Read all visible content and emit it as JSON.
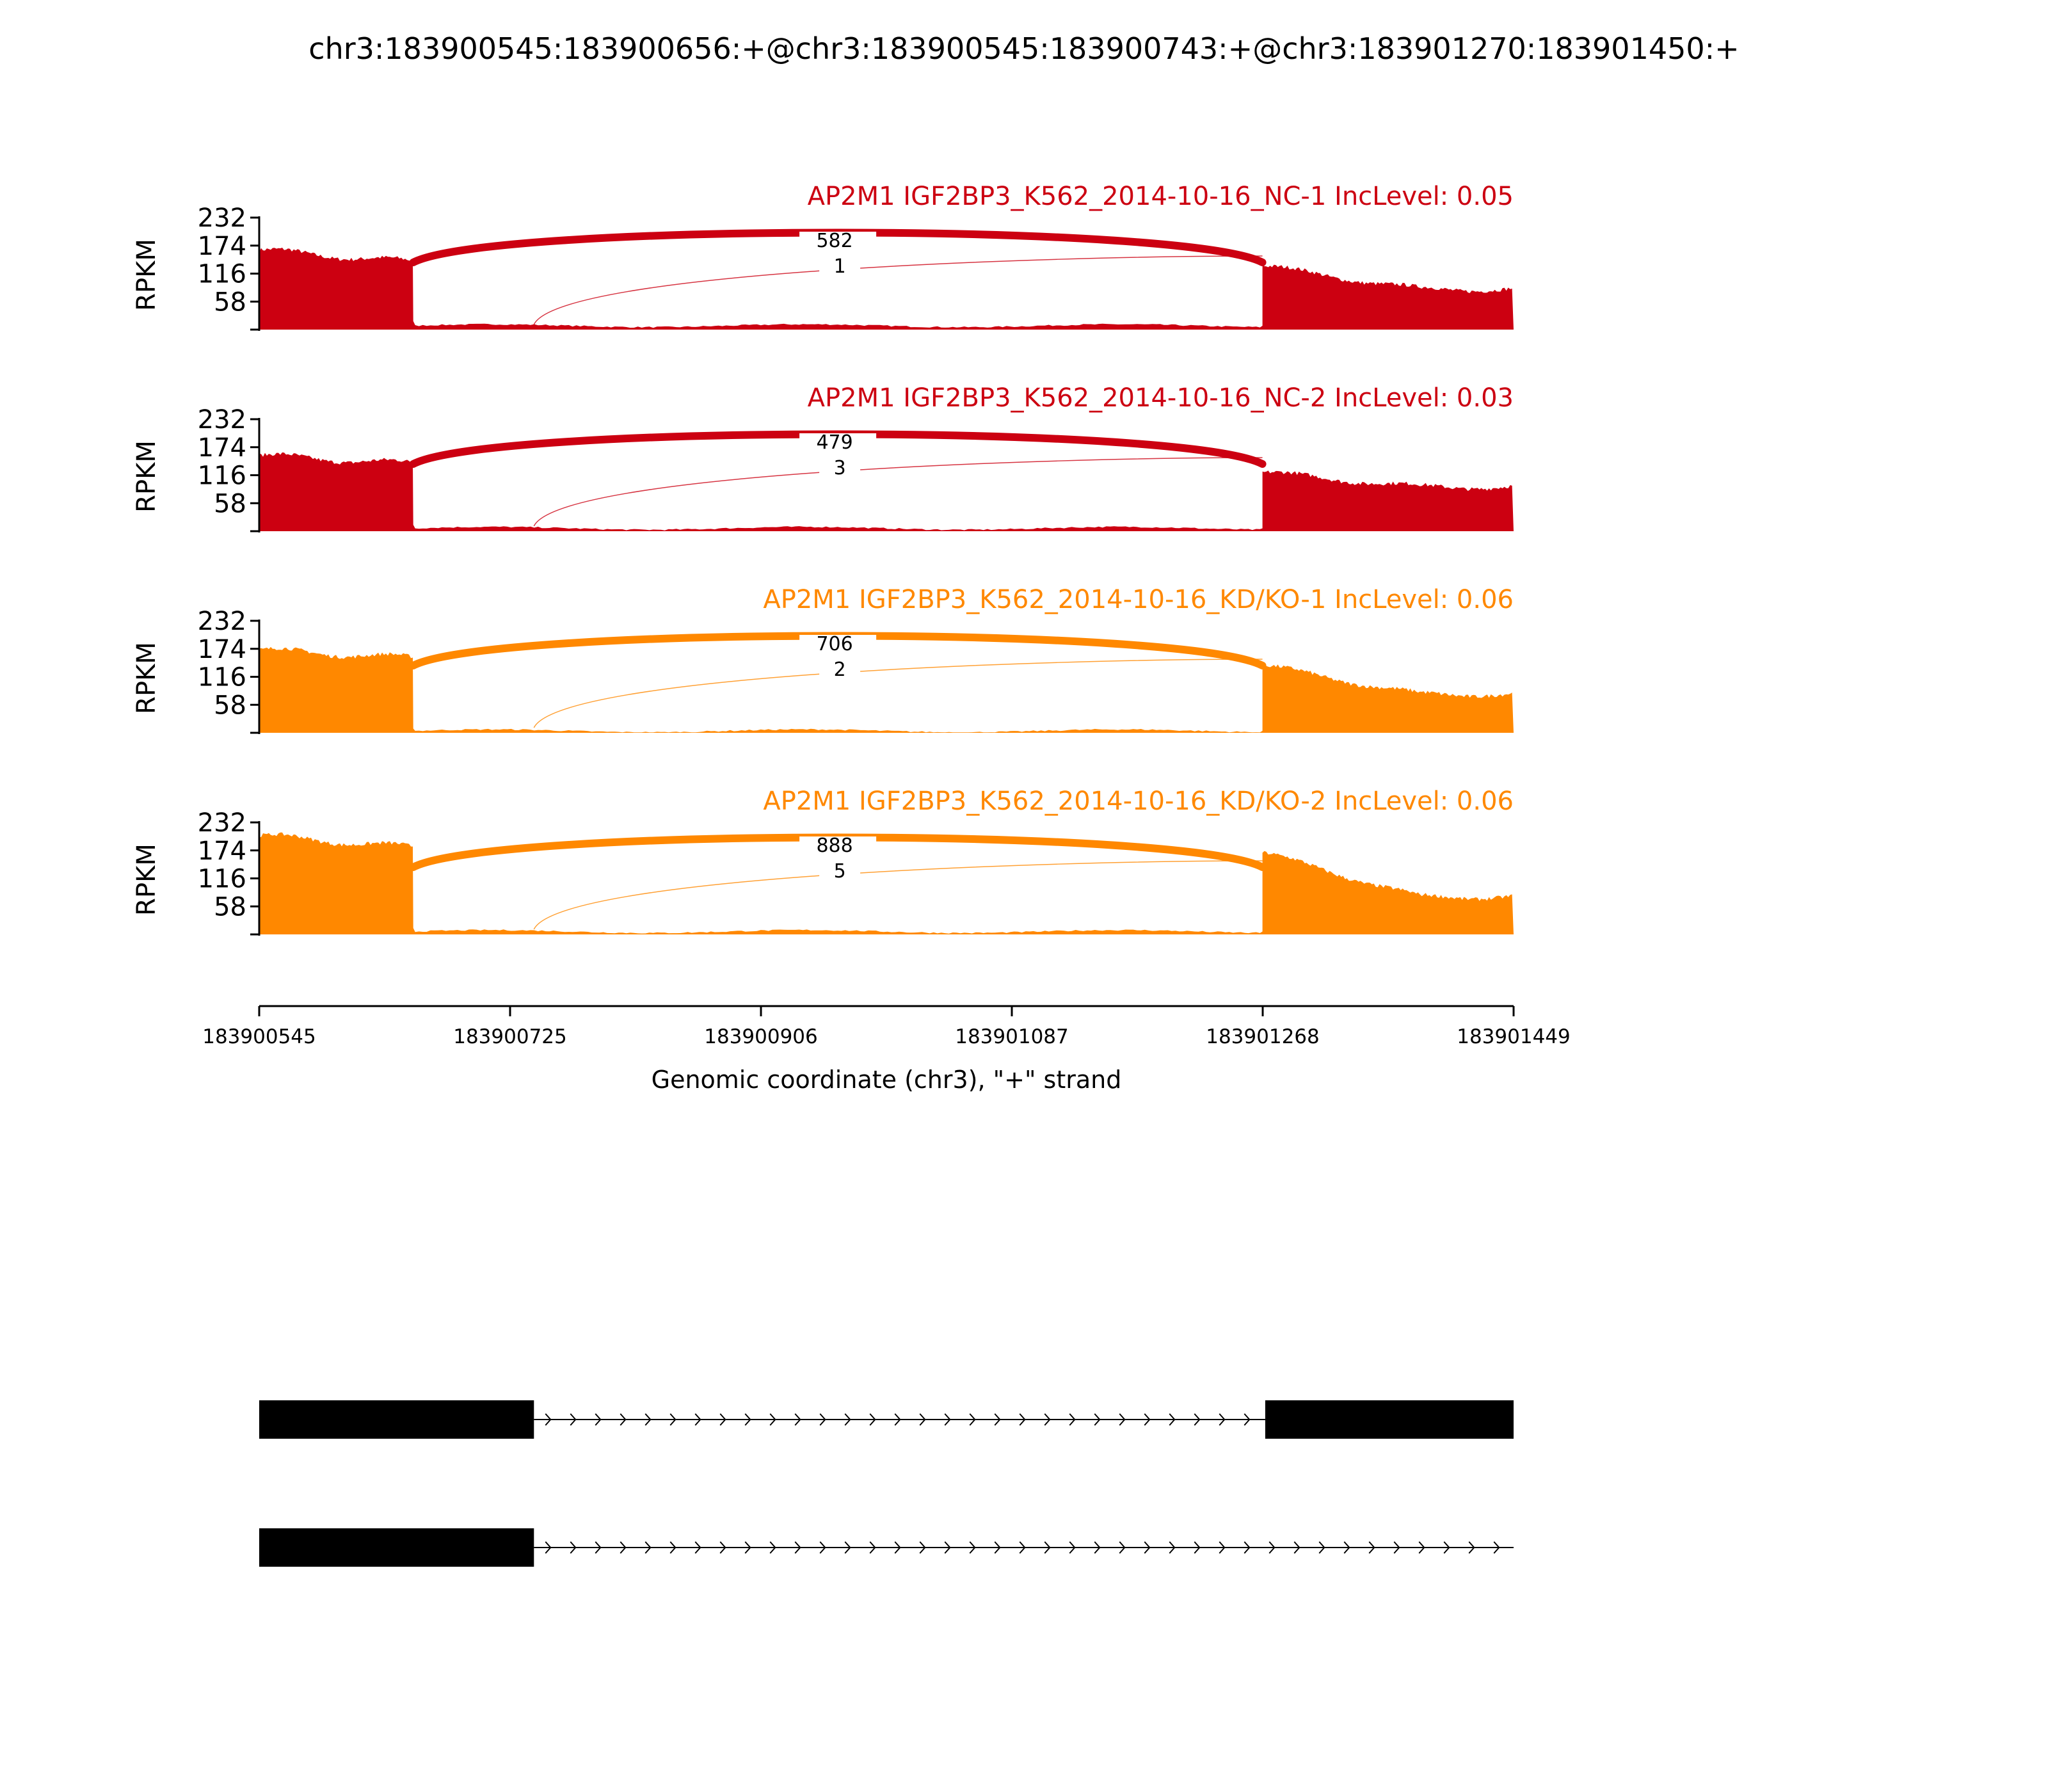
{
  "title": "chr3:183900545:183900656:+@chr3:183900545:183900743:+@chr3:183901270:183901450:+",
  "chart_data": {
    "type": "sashimi",
    "title": "chr3:183900545:183900656:+@chr3:183900545:183900743:+@chr3:183901270:183901450:+",
    "xlabel": "Genomic coordinate (chr3), \"+\" strand",
    "ylabel": "RPKM",
    "x_ticks": [
      "183900545",
      "183900725",
      "183900906",
      "183901087",
      "183901268",
      "183901449"
    ],
    "xlim": [
      183900545,
      183901449
    ],
    "y_ticks": [
      "232",
      "174",
      "116",
      "58"
    ],
    "ylim": [
      0,
      232
    ],
    "tracks": [
      {
        "label": "AP2M1 IGF2BP3_K562_2014-10-16_NC-1 IncLevel: 0.05",
        "color": "#cc0011",
        "coverage": {
          "exon1_start_end": [
            165,
            140
          ],
          "intron_level": 8,
          "exon3_start_end": [
            132,
            84
          ]
        },
        "junctions": [
          {
            "label": "582",
            "from": 183900656,
            "to": 183901268
          },
          {
            "label": "1",
            "from": 183900743,
            "to": 183901268
          }
        ]
      },
      {
        "label": "AP2M1 IGF2BP3_K562_2014-10-16_NC-2 IncLevel: 0.03",
        "color": "#cc0011",
        "coverage": {
          "exon1_start_end": [
            157,
            140
          ],
          "intron_level": 6,
          "exon3_start_end": [
            122,
            92
          ]
        },
        "junctions": [
          {
            "label": "479",
            "from": 183900656,
            "to": 183901268
          },
          {
            "label": "3",
            "from": 183900743,
            "to": 183901268
          }
        ]
      },
      {
        "label": "AP2M1 IGF2BP3_K562_2014-10-16_KD/KO-1 IncLevel: 0.06",
        "color": "#ff8800",
        "coverage": {
          "exon1_start_end": [
            172,
            155
          ],
          "intron_level": 4,
          "exon3_start_end": [
            140,
            80
          ]
        },
        "junctions": [
          {
            "label": "706",
            "from": 183900656,
            "to": 183901268
          },
          {
            "label": "2",
            "from": 183900743,
            "to": 183901268
          }
        ]
      },
      {
        "label": "AP2M1 IGF2BP3_K562_2014-10-16_KD/KO-2 IncLevel: 0.06",
        "color": "#ff8800",
        "coverage": {
          "exon1_start_end": [
            205,
            180
          ],
          "intron_level": 6,
          "exon3_start_end": [
            170,
            78
          ]
        },
        "junctions": [
          {
            "label": "888",
            "from": 183900656,
            "to": 183901268
          },
          {
            "label": "5",
            "from": 183900743,
            "to": 183901268
          }
        ]
      }
    ],
    "isoforms": [
      {
        "exons": [
          [
            183900545,
            183900743
          ],
          [
            183901270,
            183901449
          ]
        ],
        "intron_end": 183901270
      },
      {
        "exons": [
          [
            183900545,
            183900743
          ]
        ],
        "intron_end": 183901449
      }
    ]
  }
}
